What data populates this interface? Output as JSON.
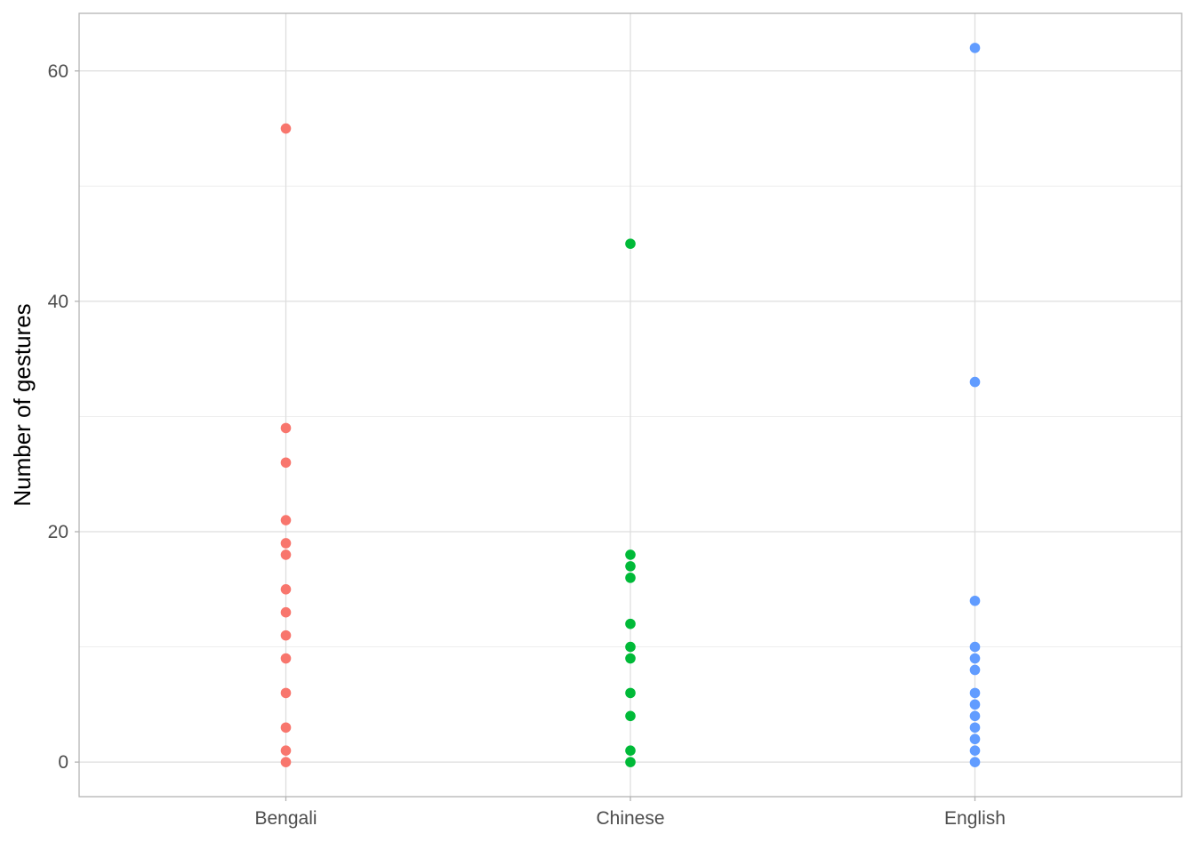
{
  "chart_data": {
    "type": "scatter",
    "title": "",
    "xlabel": "",
    "ylabel": "Number of gestures",
    "x_type": "categorical",
    "categories": [
      "Bengali",
      "Chinese",
      "English"
    ],
    "ylim": [
      -3,
      65
    ],
    "y_major_ticks": [
      0,
      20,
      40,
      60
    ],
    "y_minor_gridlines": [
      10,
      30,
      50
    ],
    "grid": true,
    "legend": "none",
    "series": [
      {
        "category": "Bengali",
        "color": "#F8766D",
        "values": [
          55,
          29,
          26,
          21,
          19,
          18,
          15,
          13,
          11,
          9,
          6,
          3,
          1,
          0
        ]
      },
      {
        "category": "Chinese",
        "color": "#00BA38",
        "values": [
          45,
          18,
          17,
          16,
          12,
          10,
          9,
          6,
          4,
          1,
          0
        ]
      },
      {
        "category": "English",
        "color": "#619CFF",
        "values": [
          62,
          33,
          14,
          10,
          9,
          8,
          6,
          5,
          4,
          3,
          2,
          1,
          0
        ]
      }
    ]
  }
}
